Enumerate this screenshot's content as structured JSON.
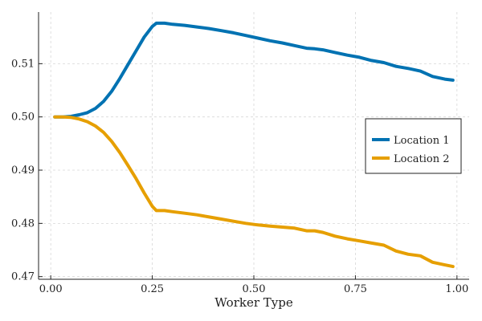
{
  "chart_data": {
    "type": "line",
    "title": "",
    "xlabel": "Worker Type",
    "ylabel": "",
    "xlim": [
      -0.03,
      1.03
    ],
    "ylim": [
      0.4695,
      0.5197
    ],
    "xticks": [
      0.0,
      0.25,
      0.5,
      0.75,
      1.0
    ],
    "xtick_labels": [
      "0.00",
      "0.25",
      "0.50",
      "0.75",
      "1.00"
    ],
    "yticks": [
      0.47,
      0.48,
      0.49,
      0.5,
      0.51
    ],
    "ytick_labels": [
      "0.47",
      "0.48",
      "0.49",
      "0.50",
      "0.51"
    ],
    "grid": true,
    "legend_position": "right",
    "series": [
      {
        "name": "Location 1",
        "color": "#0072b2",
        "x": [
          0.01,
          0.03,
          0.05,
          0.07,
          0.09,
          0.11,
          0.13,
          0.15,
          0.17,
          0.19,
          0.21,
          0.23,
          0.25,
          0.26,
          0.28,
          0.3,
          0.33,
          0.36,
          0.39,
          0.42,
          0.45,
          0.48,
          0.51,
          0.54,
          0.57,
          0.6,
          0.63,
          0.65,
          0.67,
          0.7,
          0.73,
          0.76,
          0.79,
          0.82,
          0.85,
          0.88,
          0.91,
          0.94,
          0.97,
          0.99
        ],
        "y": [
          0.5,
          0.5,
          0.5001,
          0.5004,
          0.5008,
          0.5016,
          0.5029,
          0.5048,
          0.5072,
          0.5098,
          0.5124,
          0.515,
          0.517,
          0.5176,
          0.5176,
          0.5174,
          0.5172,
          0.5169,
          0.5166,
          0.5162,
          0.5158,
          0.5153,
          0.5148,
          0.5143,
          0.5139,
          0.5134,
          0.5129,
          0.5128,
          0.5126,
          0.5121,
          0.5116,
          0.5112,
          0.5106,
          0.5102,
          0.5095,
          0.5091,
          0.5086,
          0.5076,
          0.5071,
          0.5069
        ]
      },
      {
        "name": "Location 2",
        "color": "#e69f00",
        "x": [
          0.01,
          0.03,
          0.05,
          0.07,
          0.09,
          0.11,
          0.13,
          0.15,
          0.17,
          0.19,
          0.21,
          0.23,
          0.25,
          0.26,
          0.28,
          0.3,
          0.33,
          0.36,
          0.39,
          0.42,
          0.45,
          0.48,
          0.51,
          0.54,
          0.57,
          0.6,
          0.63,
          0.65,
          0.67,
          0.7,
          0.73,
          0.76,
          0.79,
          0.82,
          0.85,
          0.88,
          0.91,
          0.94,
          0.97,
          0.99
        ],
        "y": [
          0.5,
          0.5,
          0.4999,
          0.4996,
          0.4991,
          0.4983,
          0.4971,
          0.4954,
          0.4933,
          0.4909,
          0.4884,
          0.4857,
          0.4832,
          0.4824,
          0.4824,
          0.4822,
          0.4819,
          0.4816,
          0.4812,
          0.4808,
          0.4804,
          0.48,
          0.4797,
          0.4795,
          0.4793,
          0.4791,
          0.4786,
          0.4786,
          0.4783,
          0.4776,
          0.4771,
          0.4767,
          0.4763,
          0.4759,
          0.4748,
          0.4742,
          0.4739,
          0.4727,
          0.4722,
          0.4719
        ]
      }
    ]
  }
}
